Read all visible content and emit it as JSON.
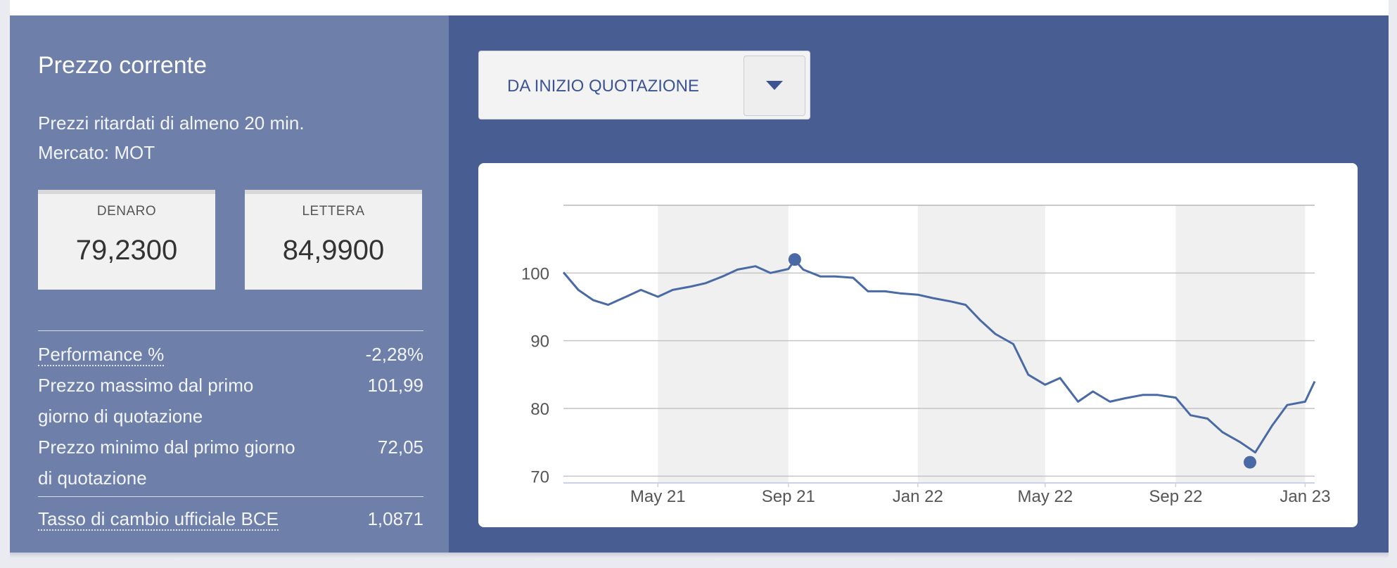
{
  "left": {
    "title": "Prezzo corrente",
    "delay_note": "Prezzi ritardati di almeno 20 min.",
    "market": "Mercato: MOT",
    "bid": {
      "label": "DENARO",
      "value": "79,2300"
    },
    "ask": {
      "label": "LETTERA",
      "value": "84,9900"
    },
    "stats": {
      "performance": {
        "label": "Performance %",
        "value": "-2,28%"
      },
      "max": {
        "label": "Prezzo massimo dal primo giorno di quotazione",
        "value": "101,99"
      },
      "min": {
        "label": "Prezzo minimo dal primo giorno di quotazione",
        "value": "72,05"
      },
      "fx": {
        "label": "Tasso di cambio ufficiale BCE",
        "value": "1,0871"
      }
    }
  },
  "period_select": {
    "value": "DA INIZIO QUOTAZIONE",
    "icon": "chevron-down-icon"
  },
  "colors": {
    "line": "#4a6aa5",
    "panel_dark": "#485e92",
    "panel_light": "#6e80aa",
    "band": "#f0f0f0"
  },
  "chart_data": {
    "type": "line",
    "title": "",
    "xlabel": "",
    "ylabel": "",
    "x_ticks": [
      "May 21",
      "Sep 21",
      "Jan 22",
      "May 22",
      "Sep 22",
      "Jan 23"
    ],
    "y_ticks": [
      70,
      80,
      90,
      100
    ],
    "ylim": [
      69,
      110
    ],
    "grid": true,
    "series": [
      {
        "x": [
          "2021-02-01",
          "2021-02-15",
          "2021-03-01",
          "2021-03-15",
          "2021-04-01",
          "2021-04-15",
          "2021-05-01",
          "2021-05-15",
          "2021-06-01",
          "2021-06-15",
          "2021-07-01",
          "2021-07-15",
          "2021-08-01",
          "2021-08-15",
          "2021-09-01",
          "2021-09-07",
          "2021-09-15",
          "2021-10-01",
          "2021-10-15",
          "2021-11-01",
          "2021-11-15",
          "2021-12-01",
          "2021-12-15",
          "2022-01-01",
          "2022-01-15",
          "2022-02-01",
          "2022-02-15",
          "2022-03-01",
          "2022-03-15",
          "2022-04-01",
          "2022-04-15",
          "2022-05-01",
          "2022-05-15",
          "2022-06-01",
          "2022-06-15",
          "2022-07-01",
          "2022-07-15",
          "2022-08-01",
          "2022-08-15",
          "2022-09-01",
          "2022-09-15",
          "2022-10-01",
          "2022-10-15",
          "2022-11-01",
          "2022-11-15",
          "2022-12-01",
          "2022-12-15",
          "2023-01-01",
          "2023-01-10"
        ],
        "values": [
          100.1,
          97.5,
          96,
          95.3,
          96.5,
          97.5,
          96.5,
          97.5,
          98,
          98.5,
          99.5,
          100.5,
          101,
          100,
          100.6,
          101.9,
          100.5,
          99.5,
          99.5,
          99.3,
          97.3,
          97.3,
          97,
          96.8,
          96.3,
          95.8,
          95.3,
          93,
          91,
          89.5,
          85,
          83.5,
          84.5,
          81,
          82.5,
          81,
          81.5,
          82,
          82,
          81.6,
          79,
          78.5,
          76.5,
          75,
          73.5,
          77.5,
          80.5,
          81,
          84
        ]
      }
    ],
    "markers": [
      {
        "label": "max",
        "x": "2021-09-07",
        "value": 101.99
      },
      {
        "label": "min",
        "x": "2022-11-10",
        "value": 72.05
      }
    ]
  }
}
